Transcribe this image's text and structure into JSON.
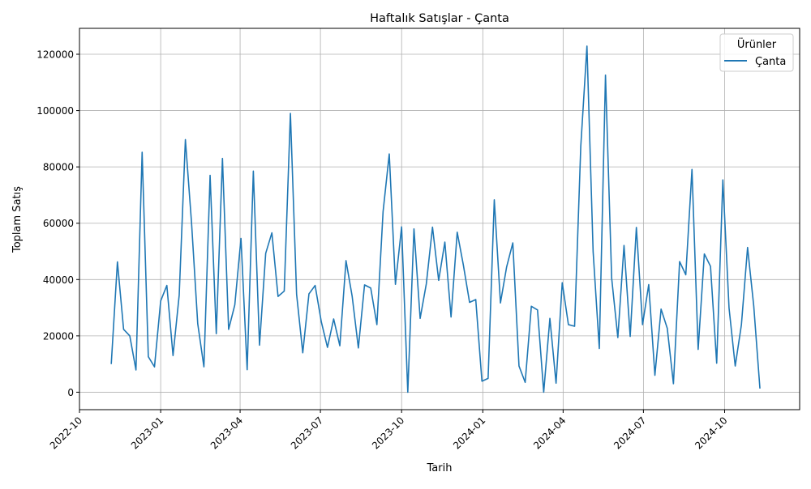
{
  "chart_data": {
    "type": "line",
    "title": "Haftalık Satışlar - Çanta",
    "xlabel": "Tarih",
    "ylabel": "Toplam Satış",
    "legend_title": "Ürünler",
    "legend_position": "top-right",
    "grid": true,
    "x_range": [
      "2022-10-01",
      "2024-12-25"
    ],
    "ylim": [
      -6200,
      129200
    ],
    "x_ticks": [
      "2022-10",
      "2023-01",
      "2023-04",
      "2023-07",
      "2023-10",
      "2024-01",
      "2024-04",
      "2024-07",
      "2024-10"
    ],
    "y_ticks": [
      0,
      20000,
      40000,
      60000,
      80000,
      100000,
      120000
    ],
    "series": [
      {
        "name": "Çanta",
        "color": "#1f77b4",
        "points": [
          [
            "2022-11-06",
            10000
          ],
          [
            "2022-11-13",
            46300
          ],
          [
            "2022-11-20",
            22300
          ],
          [
            "2022-11-27",
            20000
          ],
          [
            "2022-12-04",
            7900
          ],
          [
            "2022-12-11",
            85200
          ],
          [
            "2022-12-18",
            12600
          ],
          [
            "2022-12-25",
            9000
          ],
          [
            "2023-01-01",
            32400
          ],
          [
            "2023-01-08",
            37900
          ],
          [
            "2023-01-15",
            13000
          ],
          [
            "2023-01-22",
            34500
          ],
          [
            "2023-01-29",
            89700
          ],
          [
            "2023-02-05",
            60000
          ],
          [
            "2023-02-12",
            24300
          ],
          [
            "2023-02-19",
            9000
          ],
          [
            "2023-02-26",
            77000
          ],
          [
            "2023-03-05",
            20800
          ],
          [
            "2023-03-12",
            83000
          ],
          [
            "2023-03-19",
            22300
          ],
          [
            "2023-03-26",
            31000
          ],
          [
            "2023-04-02",
            54600
          ],
          [
            "2023-04-09",
            8000
          ],
          [
            "2023-04-16",
            78500
          ],
          [
            "2023-04-23",
            16700
          ],
          [
            "2023-04-30",
            49300
          ],
          [
            "2023-05-07",
            56600
          ],
          [
            "2023-05-14",
            34000
          ],
          [
            "2023-05-21",
            35900
          ],
          [
            "2023-05-28",
            99000
          ],
          [
            "2023-06-04",
            34800
          ],
          [
            "2023-06-11",
            14000
          ],
          [
            "2023-06-18",
            34900
          ],
          [
            "2023-06-25",
            37900
          ],
          [
            "2023-07-02",
            25000
          ],
          [
            "2023-07-09",
            15900
          ],
          [
            "2023-07-16",
            26000
          ],
          [
            "2023-07-23",
            16500
          ],
          [
            "2023-07-30",
            46700
          ],
          [
            "2023-08-06",
            34000
          ],
          [
            "2023-08-13",
            15700
          ],
          [
            "2023-08-20",
            38100
          ],
          [
            "2023-08-27",
            37000
          ],
          [
            "2023-09-03",
            24000
          ],
          [
            "2023-09-10",
            64100
          ],
          [
            "2023-09-17",
            84600
          ],
          [
            "2023-09-24",
            38300
          ],
          [
            "2023-10-01",
            58700
          ],
          [
            "2023-10-08",
            0
          ],
          [
            "2023-10-15",
            58000
          ],
          [
            "2023-10-22",
            26200
          ],
          [
            "2023-10-29",
            38500
          ],
          [
            "2023-11-05",
            58600
          ],
          [
            "2023-11-12",
            39700
          ],
          [
            "2023-11-19",
            53300
          ],
          [
            "2023-11-26",
            26700
          ],
          [
            "2023-12-03",
            56800
          ],
          [
            "2023-12-10",
            45100
          ],
          [
            "2023-12-17",
            31900
          ],
          [
            "2023-12-24",
            32900
          ],
          [
            "2023-12-31",
            3900
          ],
          [
            "2024-01-07",
            4900
          ],
          [
            "2024-01-14",
            68300
          ],
          [
            "2024-01-21",
            31700
          ],
          [
            "2024-01-28",
            44500
          ],
          [
            "2024-02-04",
            53000
          ],
          [
            "2024-02-11",
            9300
          ],
          [
            "2024-02-18",
            3500
          ],
          [
            "2024-02-25",
            30500
          ],
          [
            "2024-03-03",
            29200
          ],
          [
            "2024-03-10",
            0
          ],
          [
            "2024-03-17",
            26200
          ],
          [
            "2024-03-24",
            3200
          ],
          [
            "2024-03-31",
            38900
          ],
          [
            "2024-04-07",
            24000
          ],
          [
            "2024-04-14",
            23400
          ],
          [
            "2024-04-21",
            87300
          ],
          [
            "2024-04-28",
            122900
          ],
          [
            "2024-05-05",
            49900
          ],
          [
            "2024-05-12",
            15500
          ],
          [
            "2024-05-19",
            112600
          ],
          [
            "2024-05-26",
            40500
          ],
          [
            "2024-06-02",
            19400
          ],
          [
            "2024-06-09",
            52100
          ],
          [
            "2024-06-16",
            19800
          ],
          [
            "2024-06-23",
            58500
          ],
          [
            "2024-06-30",
            24000
          ],
          [
            "2024-07-07",
            38200
          ],
          [
            "2024-07-14",
            6000
          ],
          [
            "2024-07-21",
            29500
          ],
          [
            "2024-07-28",
            22700
          ],
          [
            "2024-08-04",
            3000
          ],
          [
            "2024-08-11",
            46400
          ],
          [
            "2024-08-18",
            41700
          ],
          [
            "2024-08-25",
            79100
          ],
          [
            "2024-09-01",
            15200
          ],
          [
            "2024-09-08",
            49100
          ],
          [
            "2024-09-15",
            44700
          ],
          [
            "2024-09-22",
            10300
          ],
          [
            "2024-09-29",
            75400
          ],
          [
            "2024-10-06",
            29900
          ],
          [
            "2024-10-13",
            9300
          ],
          [
            "2024-10-20",
            23900
          ],
          [
            "2024-10-27",
            51400
          ],
          [
            "2024-11-03",
            30600
          ],
          [
            "2024-11-10",
            1300
          ]
        ]
      }
    ]
  }
}
